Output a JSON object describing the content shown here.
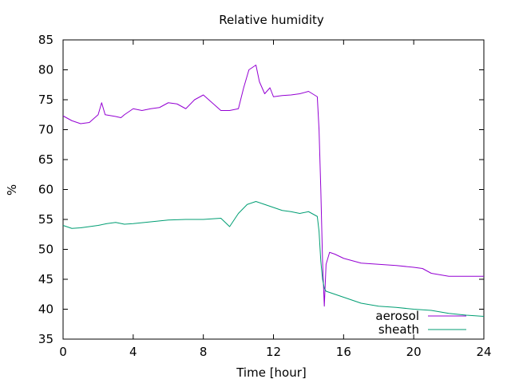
{
  "chart_data": {
    "type": "line",
    "title": "Relative humidity",
    "xlabel": "Time [hour]",
    "ylabel": "%",
    "xlim": [
      0,
      24
    ],
    "ylim": [
      35,
      85
    ],
    "xticks": [
      0,
      4,
      8,
      12,
      16,
      20,
      24
    ],
    "yticks": [
      35,
      40,
      45,
      50,
      55,
      60,
      65,
      70,
      75,
      80,
      85
    ],
    "grid": false,
    "legend": "bottom-right",
    "series": [
      {
        "name": "aerosol",
        "color": "#9400d3",
        "x": [
          0,
          0.5,
          1,
          1.5,
          2,
          2.2,
          2.4,
          3,
          3.3,
          3.5,
          4,
          4.5,
          5,
          5.5,
          6,
          6.5,
          7,
          7.5,
          8,
          8.5,
          9,
          9.5,
          10,
          10.3,
          10.6,
          11,
          11.2,
          11.5,
          11.8,
          12,
          12.5,
          13,
          13.5,
          14,
          14.5,
          14.6,
          14.7,
          14.8,
          14.9,
          15,
          15.2,
          15.5,
          16,
          17,
          18,
          19,
          20,
          20.5,
          21,
          22,
          23,
          24
        ],
        "y": [
          72.3,
          71.5,
          71.0,
          71.2,
          72.5,
          74.5,
          72.5,
          72.2,
          72.0,
          72.5,
          73.5,
          73.2,
          73.5,
          73.7,
          74.5,
          74.3,
          73.5,
          75.0,
          75.8,
          74.5,
          73.2,
          73.2,
          73.5,
          77.0,
          80.0,
          80.8,
          78.0,
          76.0,
          77.0,
          75.5,
          75.7,
          75.8,
          76.0,
          76.4,
          75.5,
          70.0,
          60.0,
          48.0,
          40.5,
          47.5,
          49.5,
          49.2,
          48.5,
          47.7,
          47.5,
          47.3,
          47.0,
          46.8,
          46.0,
          45.5,
          45.5,
          45.5
        ]
      },
      {
        "name": "sheath",
        "color": "#009e73",
        "x": [
          0,
          0.5,
          1,
          1.5,
          2,
          2.5,
          3,
          3.5,
          4,
          5,
          6,
          7,
          8,
          9,
          9.5,
          10,
          10.5,
          11,
          11.5,
          12,
          12.5,
          13,
          13.5,
          14,
          14.5,
          14.6,
          14.7,
          14.8,
          14.9,
          15,
          16,
          17,
          18,
          19,
          20,
          21,
          22,
          23,
          24
        ],
        "y": [
          54.0,
          53.5,
          53.6,
          53.8,
          54.0,
          54.3,
          54.5,
          54.2,
          54.3,
          54.6,
          54.9,
          55.0,
          55.0,
          55.2,
          53.8,
          56.0,
          57.5,
          58.0,
          57.5,
          57.0,
          56.5,
          56.3,
          56.0,
          56.3,
          55.5,
          53.0,
          48.0,
          45.0,
          43.5,
          43.0,
          42.0,
          41.0,
          40.5,
          40.3,
          40.0,
          39.8,
          39.3,
          39.0,
          38.8
        ]
      }
    ]
  }
}
